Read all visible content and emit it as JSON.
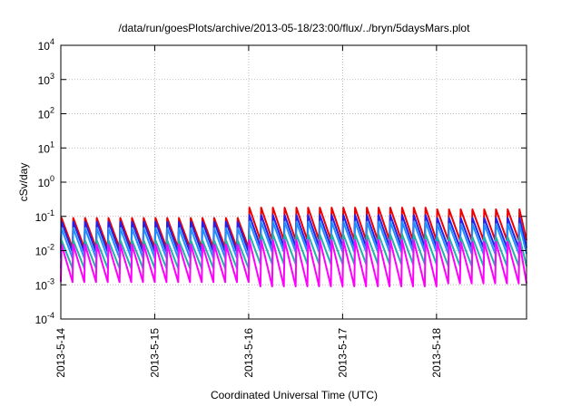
{
  "chart_data": {
    "type": "line",
    "title": "/data/run/goesPlots/archive/2013-05-18/23:00/flux/../bryn/5daysMars.plot",
    "xlabel": "Coordinated Universal Time (UTC)",
    "ylabel": "cSv/day",
    "y_scale": "log",
    "ylim": [
      0.0001,
      10000
    ],
    "y_ticks": [
      {
        "value": 0.0001,
        "base": "10",
        "exp": "-4"
      },
      {
        "value": 0.001,
        "base": "10",
        "exp": "-3"
      },
      {
        "value": 0.01,
        "base": "10",
        "exp": "-2"
      },
      {
        "value": 0.1,
        "base": "10",
        "exp": "-1"
      },
      {
        "value": 1,
        "base": "10",
        "exp": "0"
      },
      {
        "value": 10,
        "base": "10",
        "exp": "1"
      },
      {
        "value": 100,
        "base": "10",
        "exp": "2"
      },
      {
        "value": 1000,
        "base": "10",
        "exp": "3"
      },
      {
        "value": 10000,
        "base": "10",
        "exp": "4"
      }
    ],
    "xlim": [
      "2013-05-14 00:00",
      "2013-05-18 23:00"
    ],
    "x_ticks": [
      "2013-5-14",
      "2013-5-15",
      "2013-5-16",
      "2013-5-17",
      "2013-5-18"
    ],
    "grid": true,
    "legend": "none",
    "sawtooth_cycle_hours": 3,
    "series": [
      {
        "color": "#ee0000",
        "values": [
          0.09,
          0.09,
          0.09,
          0.09,
          0.09,
          0.09,
          0.09,
          0.09,
          0.09,
          0.09,
          0.09,
          0.09,
          0.09,
          0.09,
          0.09,
          0.09,
          0.18,
          0.18,
          0.18,
          0.18,
          0.18,
          0.18,
          0.18,
          0.18,
          0.18,
          0.18,
          0.18,
          0.18,
          0.18,
          0.18,
          0.18,
          0.18,
          0.16,
          0.16,
          0.16,
          0.16,
          0.16,
          0.16,
          0.16,
          0.16
        ],
        "min_values": [
          0.012,
          0.012,
          0.012,
          0.012,
          0.012,
          0.012,
          0.012,
          0.012,
          0.012,
          0.012,
          0.012,
          0.012,
          0.012,
          0.012,
          0.012,
          0.012,
          0.02,
          0.02,
          0.02,
          0.02,
          0.02,
          0.02,
          0.02,
          0.02,
          0.02,
          0.02,
          0.02,
          0.02,
          0.02,
          0.02,
          0.02,
          0.02,
          0.02,
          0.02,
          0.02,
          0.02,
          0.02,
          0.02,
          0.02,
          0.02
        ]
      },
      {
        "color": "#2222ee",
        "values": [
          0.07,
          0.07,
          0.07,
          0.07,
          0.07,
          0.07,
          0.07,
          0.07,
          0.07,
          0.07,
          0.07,
          0.07,
          0.07,
          0.07,
          0.07,
          0.07,
          0.11,
          0.11,
          0.11,
          0.11,
          0.11,
          0.11,
          0.11,
          0.11,
          0.11,
          0.11,
          0.11,
          0.11,
          0.11,
          0.11,
          0.11,
          0.11,
          0.09,
          0.09,
          0.09,
          0.09,
          0.09,
          0.09,
          0.09,
          0.09
        ],
        "min_values": [
          0.009,
          0.009,
          0.009,
          0.009,
          0.009,
          0.009,
          0.009,
          0.009,
          0.009,
          0.009,
          0.009,
          0.009,
          0.009,
          0.009,
          0.009,
          0.009,
          0.013,
          0.013,
          0.013,
          0.013,
          0.013,
          0.013,
          0.013,
          0.013,
          0.013,
          0.013,
          0.013,
          0.013,
          0.013,
          0.013,
          0.013,
          0.013,
          0.012,
          0.012,
          0.012,
          0.012,
          0.012,
          0.012,
          0.012,
          0.012
        ]
      },
      {
        "color": "#1e90ff",
        "values": [
          0.045,
          0.045,
          0.045,
          0.045,
          0.045,
          0.045,
          0.045,
          0.045,
          0.045,
          0.045,
          0.045,
          0.045,
          0.045,
          0.045,
          0.045,
          0.045,
          0.07,
          0.07,
          0.07,
          0.07,
          0.07,
          0.07,
          0.07,
          0.07,
          0.07,
          0.07,
          0.07,
          0.07,
          0.07,
          0.07,
          0.07,
          0.07,
          0.06,
          0.06,
          0.06,
          0.06,
          0.06,
          0.06,
          0.06,
          0.06
        ],
        "min_values": [
          0.006,
          0.006,
          0.006,
          0.006,
          0.006,
          0.006,
          0.006,
          0.006,
          0.006,
          0.006,
          0.006,
          0.006,
          0.006,
          0.006,
          0.006,
          0.006,
          0.009,
          0.009,
          0.009,
          0.009,
          0.009,
          0.009,
          0.009,
          0.009,
          0.009,
          0.009,
          0.009,
          0.009,
          0.009,
          0.009,
          0.009,
          0.009,
          0.008,
          0.008,
          0.008,
          0.008,
          0.008,
          0.008,
          0.008,
          0.008
        ]
      },
      {
        "color": "#20b2aa",
        "values": [
          0.02,
          0.02,
          0.02,
          0.02,
          0.02,
          0.02,
          0.02,
          0.02,
          0.02,
          0.02,
          0.02,
          0.02,
          0.02,
          0.02,
          0.02,
          0.02,
          0.03,
          0.03,
          0.03,
          0.03,
          0.03,
          0.03,
          0.03,
          0.03,
          0.03,
          0.03,
          0.03,
          0.03,
          0.03,
          0.03,
          0.03,
          0.03,
          0.025,
          0.025,
          0.025,
          0.025,
          0.025,
          0.025,
          0.025,
          0.025
        ],
        "min_values": [
          0.003,
          0.003,
          0.003,
          0.003,
          0.003,
          0.003,
          0.003,
          0.003,
          0.003,
          0.003,
          0.003,
          0.003,
          0.003,
          0.003,
          0.003,
          0.003,
          0.004,
          0.004,
          0.004,
          0.004,
          0.004,
          0.004,
          0.004,
          0.004,
          0.004,
          0.004,
          0.004,
          0.004,
          0.004,
          0.004,
          0.004,
          0.004,
          0.0035,
          0.0035,
          0.0035,
          0.0035,
          0.0035,
          0.0035,
          0.0035,
          0.0035
        ]
      },
      {
        "color": "#ff00ff",
        "values": [
          0.015,
          0.015,
          0.015,
          0.015,
          0.015,
          0.015,
          0.015,
          0.015,
          0.015,
          0.015,
          0.015,
          0.015,
          0.015,
          0.015,
          0.015,
          0.015,
          0.02,
          0.02,
          0.02,
          0.02,
          0.02,
          0.02,
          0.02,
          0.02,
          0.02,
          0.02,
          0.02,
          0.02,
          0.02,
          0.02,
          0.02,
          0.02,
          0.018,
          0.018,
          0.018,
          0.018,
          0.018,
          0.018,
          0.018,
          0.018
        ],
        "min_values": [
          0.0012,
          0.0012,
          0.0012,
          0.0012,
          0.0012,
          0.0012,
          0.0012,
          0.0012,
          0.0012,
          0.0012,
          0.0012,
          0.0012,
          0.0012,
          0.0012,
          0.0012,
          0.0012,
          0.0009,
          0.0009,
          0.0009,
          0.0009,
          0.0009,
          0.0009,
          0.0009,
          0.0009,
          0.0009,
          0.0009,
          0.0009,
          0.0009,
          0.0009,
          0.0009,
          0.0009,
          0.0009,
          0.0011,
          0.0011,
          0.0011,
          0.0011,
          0.0011,
          0.0011,
          0.0011,
          0.0011
        ]
      }
    ]
  }
}
